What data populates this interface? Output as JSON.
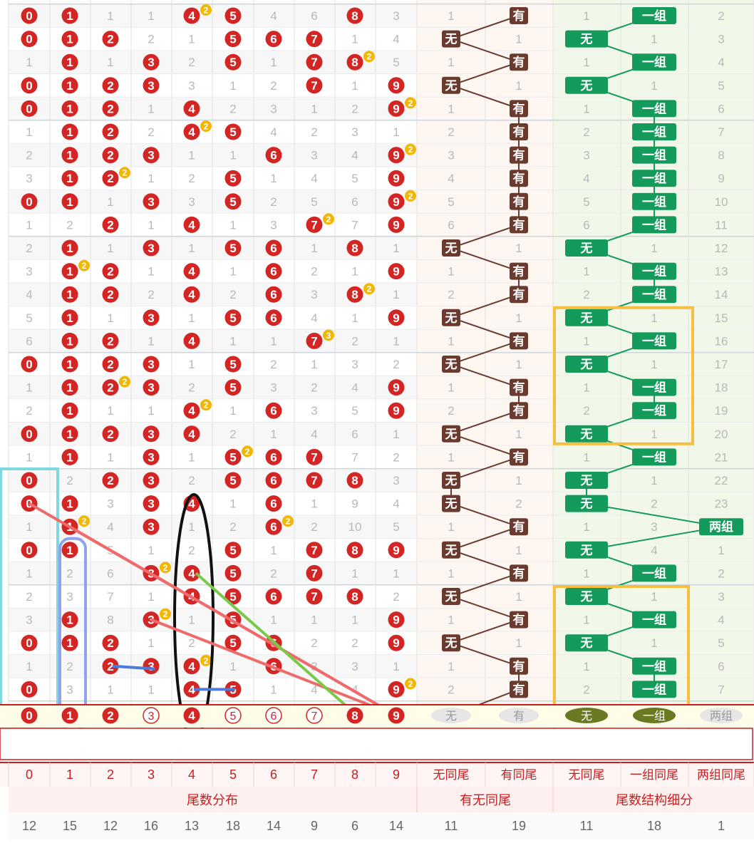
{
  "columns": {
    "tail": [
      "0",
      "1",
      "2",
      "3",
      "4",
      "5",
      "6",
      "7",
      "8",
      "9"
    ],
    "samewei": [
      "无同尾",
      "有同尾"
    ],
    "structure": [
      "无同尾",
      "一组同尾",
      "两组同尾"
    ]
  },
  "groups": {
    "tail": "尾数分布",
    "samewei": "有无同尾",
    "structure": "尾数结构细分"
  },
  "labels": {
    "none": "无",
    "have": "有",
    "one_group": "一组",
    "two_group": "两组"
  },
  "totals": [
    "12",
    "15",
    "12",
    "16",
    "13",
    "18",
    "14",
    "9",
    "6",
    "14",
    "11",
    "19",
    "11",
    "18",
    "1"
  ],
  "rows": [
    {
      "t": [
        "0",
        "1",
        "1",
        "1",
        "4",
        "5",
        "4",
        "6",
        "8",
        "3"
      ],
      "b": {
        "4": "2"
      },
      "w": [
        "1",
        "有"
      ],
      "s": [
        "1",
        "一组",
        "2"
      ]
    },
    {
      "t": [
        "0",
        "1",
        "2",
        "2",
        "1",
        "5",
        "6",
        "7",
        "1",
        "4"
      ],
      "b": {},
      "w": [
        "无",
        "1"
      ],
      "s": [
        "无",
        "1",
        "3"
      ]
    },
    {
      "t": [
        "1",
        "1",
        "1",
        "3",
        "2",
        "5",
        "1",
        "7",
        "8",
        "5"
      ],
      "b": {
        "8": "2"
      },
      "w": [
        "1",
        "有"
      ],
      "s": [
        "1",
        "一组",
        "4"
      ]
    },
    {
      "t": [
        "0",
        "1",
        "2",
        "3",
        "3",
        "1",
        "2",
        "7",
        "1",
        "9"
      ],
      "b": {},
      "w": [
        "无",
        "1"
      ],
      "s": [
        "无",
        "1",
        "5"
      ]
    },
    {
      "t": [
        "0",
        "1",
        "2",
        "1",
        "4",
        "2",
        "3",
        "1",
        "2",
        "9"
      ],
      "b": {
        "9": "2"
      },
      "w": [
        "1",
        "有"
      ],
      "s": [
        "1",
        "一组",
        "6"
      ]
    },
    {
      "t": [
        "1",
        "1",
        "2",
        "2",
        "4",
        "5",
        "4",
        "2",
        "3",
        "1"
      ],
      "b": {
        "4": "2"
      },
      "w": [
        "2",
        "有"
      ],
      "s": [
        "2",
        "一组",
        "7"
      ]
    },
    {
      "t": [
        "2",
        "1",
        "2",
        "3",
        "1",
        "1",
        "6",
        "3",
        "4",
        "9"
      ],
      "b": {
        "9": "2"
      },
      "w": [
        "3",
        "有"
      ],
      "s": [
        "3",
        "一组",
        "8"
      ]
    },
    {
      "t": [
        "3",
        "1",
        "2",
        "1",
        "2",
        "5",
        "1",
        "4",
        "5",
        "9"
      ],
      "b": {
        "2": "2"
      },
      "w": [
        "4",
        "有"
      ],
      "s": [
        "4",
        "一组",
        "9"
      ]
    },
    {
      "t": [
        "0",
        "1",
        "1",
        "3",
        "3",
        "5",
        "2",
        "5",
        "6",
        "9"
      ],
      "b": {
        "9": "2"
      },
      "w": [
        "5",
        "有"
      ],
      "s": [
        "5",
        "一组",
        "10"
      ]
    },
    {
      "t": [
        "1",
        "2",
        "2",
        "1",
        "4",
        "1",
        "3",
        "7",
        "7",
        "9"
      ],
      "b": {
        "7": "2"
      },
      "w": [
        "6",
        "有"
      ],
      "s": [
        "6",
        "一组",
        "11"
      ]
    },
    {
      "t": [
        "2",
        "1",
        "1",
        "3",
        "1",
        "5",
        "6",
        "1",
        "8",
        "1"
      ],
      "b": {},
      "w": [
        "无",
        "1"
      ],
      "s": [
        "无",
        "1",
        "12"
      ]
    },
    {
      "t": [
        "3",
        "1",
        "2",
        "1",
        "4",
        "1",
        "6",
        "2",
        "1",
        "9"
      ],
      "b": {
        "1": "2"
      },
      "w": [
        "1",
        "有"
      ],
      "s": [
        "1",
        "一组",
        "13"
      ]
    },
    {
      "t": [
        "4",
        "1",
        "2",
        "2",
        "4",
        "2",
        "6",
        "3",
        "8",
        "1"
      ],
      "b": {
        "8": "2"
      },
      "w": [
        "2",
        "有"
      ],
      "s": [
        "2",
        "一组",
        "14"
      ]
    },
    {
      "t": [
        "5",
        "1",
        "1",
        "3",
        "1",
        "5",
        "6",
        "4",
        "1",
        "9"
      ],
      "b": {},
      "w": [
        "无",
        "1"
      ],
      "s": [
        "无",
        "1",
        "15"
      ]
    },
    {
      "t": [
        "6",
        "1",
        "2",
        "1",
        "4",
        "1",
        "1",
        "7",
        "2",
        "1"
      ],
      "b": {
        "7": "3"
      },
      "w": [
        "1",
        "有"
      ],
      "s": [
        "1",
        "一组",
        "16"
      ]
    },
    {
      "t": [
        "0",
        "1",
        "2",
        "3",
        "1",
        "5",
        "2",
        "1",
        "3",
        "2"
      ],
      "b": {},
      "w": [
        "无",
        "1"
      ],
      "s": [
        "无",
        "1",
        "17"
      ]
    },
    {
      "t": [
        "1",
        "1",
        "2",
        "3",
        "2",
        "5",
        "3",
        "2",
        "4",
        "9"
      ],
      "b": {
        "2": "2"
      },
      "w": [
        "1",
        "有"
      ],
      "s": [
        "1",
        "一组",
        "18"
      ]
    },
    {
      "t": [
        "2",
        "1",
        "1",
        "1",
        "4",
        "1",
        "6",
        "3",
        "5",
        "9"
      ],
      "b": {
        "4": "2"
      },
      "w": [
        "2",
        "有"
      ],
      "s": [
        "2",
        "一组",
        "19"
      ]
    },
    {
      "t": [
        "0",
        "1",
        "2",
        "3",
        "4",
        "2",
        "1",
        "4",
        "6",
        "1"
      ],
      "b": {},
      "w": [
        "无",
        "1"
      ],
      "s": [
        "无",
        "1",
        "20"
      ]
    },
    {
      "t": [
        "1",
        "1",
        "1",
        "3",
        "1",
        "5",
        "6",
        "7",
        "7",
        "2"
      ],
      "b": {
        "5": "2"
      },
      "w": [
        "1",
        "有"
      ],
      "s": [
        "1",
        "一组",
        "21"
      ]
    },
    {
      "t": [
        "0",
        "2",
        "2",
        "3",
        "2",
        "5",
        "6",
        "7",
        "8",
        "3"
      ],
      "b": {},
      "w": [
        "无",
        "1"
      ],
      "s": [
        "无",
        "1",
        "22"
      ]
    },
    {
      "t": [
        "0",
        "1",
        "3",
        "3",
        "4",
        "1",
        "6",
        "1",
        "9",
        "4"
      ],
      "b": {},
      "w": [
        "无",
        "2"
      ],
      "s": [
        "无",
        "2",
        "23"
      ]
    },
    {
      "t": [
        "1",
        "1",
        "4",
        "3",
        "1",
        "2",
        "6",
        "2",
        "10",
        "5"
      ],
      "b": {
        "1": "2",
        "6": "2"
      },
      "w": [
        "1",
        "有"
      ],
      "s": [
        "1",
        "3",
        "两组"
      ]
    },
    {
      "t": [
        "0",
        "1",
        "5",
        "1",
        "2",
        "5",
        "1",
        "7",
        "8",
        "9"
      ],
      "b": {},
      "w": [
        "无",
        "1"
      ],
      "s": [
        "无",
        "4",
        "1"
      ]
    },
    {
      "t": [
        "1",
        "2",
        "6",
        "3",
        "4",
        "5",
        "2",
        "7",
        "1",
        "1"
      ],
      "b": {
        "3": "2"
      },
      "w": [
        "1",
        "有"
      ],
      "s": [
        "1",
        "一组",
        "2"
      ]
    },
    {
      "t": [
        "2",
        "3",
        "7",
        "1",
        "4",
        "5",
        "6",
        "7",
        "8",
        "2"
      ],
      "b": {},
      "w": [
        "无",
        "1"
      ],
      "s": [
        "无",
        "1",
        "3"
      ]
    },
    {
      "t": [
        "3",
        "1",
        "8",
        "3",
        "1",
        "5",
        "1",
        "1",
        "1",
        "9"
      ],
      "b": {
        "3": "2"
      },
      "w": [
        "1",
        "有"
      ],
      "s": [
        "1",
        "一组",
        "4"
      ]
    },
    {
      "t": [
        "0",
        "1",
        "2",
        "1",
        "2",
        "5",
        "6",
        "2",
        "2",
        "9"
      ],
      "b": {},
      "w": [
        "无",
        "1"
      ],
      "s": [
        "无",
        "1",
        "5"
      ]
    },
    {
      "t": [
        "1",
        "2",
        "2",
        "3",
        "4",
        "1",
        "6",
        "3",
        "3",
        "1"
      ],
      "b": {
        "4": "2"
      },
      "w": [
        "1",
        "有"
      ],
      "s": [
        "1",
        "一组",
        "6"
      ]
    },
    {
      "t": [
        "0",
        "3",
        "1",
        "1",
        "4",
        "5",
        "1",
        "4",
        "4",
        "9"
      ],
      "b": {
        "9": "2"
      },
      "w": [
        "2",
        "有"
      ],
      "s": [
        "2",
        "一组",
        "7"
      ]
    }
  ],
  "forecast": {
    "tail": [
      "0",
      "1",
      "2",
      "3",
      "4",
      "5",
      "6",
      "7",
      "8",
      "9"
    ],
    "filled": [
      true,
      true,
      true,
      false,
      true,
      false,
      false,
      false,
      true,
      true
    ],
    "samewei": [
      "无",
      "有"
    ],
    "structure": [
      "无",
      "一组",
      "两组"
    ]
  },
  "colors": {
    "ball": "#d42525",
    "samewei": "#6b3a2e",
    "structure": "#149a5b",
    "grid_odd": "#f7f7f7"
  }
}
